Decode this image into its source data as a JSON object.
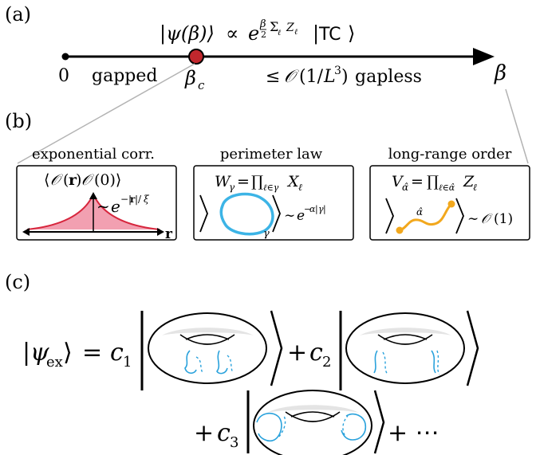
{
  "figure": {
    "panels": {
      "a": {
        "label": "(a)",
        "state_equation": "|ψ(β)⟩ ∝ e^(β/2 Σ_ℓ Z_ℓ) |TC⟩",
        "axis": {
          "origin": "0",
          "gapped": "gapped",
          "critical": "β_c",
          "gapless": "≤ 𝒪(1/L³) gapless",
          "variable": "β"
        }
      },
      "b": {
        "label": "(b)",
        "boxes": [
          {
            "title": "exponential corr.",
            "expression": "⟨𝒪(r)𝒪(0)⟩",
            "decay": "~ e^(−|r|/ξ)",
            "axis_label": "r"
          },
          {
            "title": "perimeter law",
            "expression": "W_γ = ∏_{ℓ∈γ} X_ℓ",
            "loop_label": "γ",
            "scaling": "~ e^(−α|γ|)"
          },
          {
            "title": "long-range order",
            "expression": "V_α̂ = ∏_{ℓ∈α̂} Z_ℓ",
            "string_label": "α̂",
            "scaling": "~ 𝒪(1)"
          }
        ]
      },
      "c": {
        "label": "(c)",
        "lhs": "|ψ_ex⟩ =",
        "c1": "c₁",
        "c2": "c₂",
        "c3": "c₃",
        "plus": "+",
        "ellipsis": "+ ⋯"
      }
    },
    "colors": {
      "critical_point": "#c1272d",
      "correlation_fill": "#f2a0b1",
      "correlation_line": "#d7263d",
      "loop": "#3cb4e6",
      "string": "#f2a81d",
      "wilson_line": "#2aa2dc",
      "torus_shade": "#e4e4e4",
      "guide_line": "#b3b3b3"
    }
  }
}
